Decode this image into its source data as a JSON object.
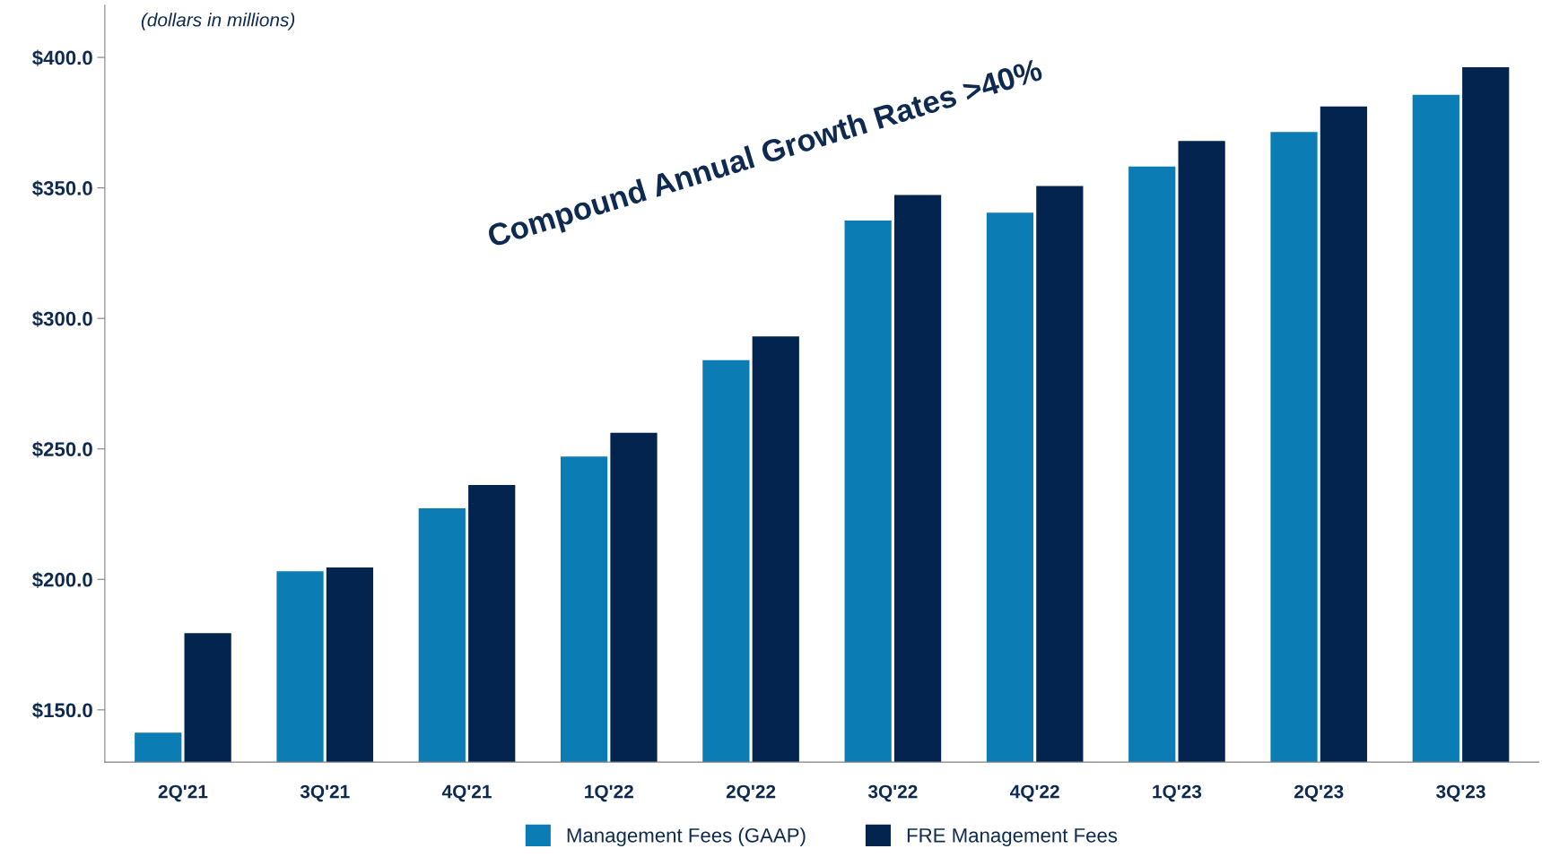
{
  "chart_data": {
    "type": "bar",
    "categories": [
      "2Q'21",
      "3Q'21",
      "4Q'21",
      "1Q'22",
      "2Q'22",
      "3Q'22",
      "4Q'22",
      "1Q'23",
      "2Q'23",
      "3Q'23"
    ],
    "series": [
      {
        "name": "Management Fees (GAAP)",
        "color": "#0b7db4",
        "values": [
          141.3,
          203.1,
          227.2,
          247.1,
          284.0,
          337.5,
          340.5,
          358.2,
          371.4,
          385.7
        ]
      },
      {
        "name": "FRE Management Fees",
        "color": "#03244e",
        "values": [
          179.4,
          204.6,
          236.2,
          256.2,
          293.1,
          347.3,
          350.7,
          368.0,
          381.2,
          396.2
        ]
      }
    ],
    "ylim": [
      130,
      420
    ],
    "yticks": [
      {
        "value": 150,
        "label": "$150.0"
      },
      {
        "value": 200,
        "label": "$200.0"
      },
      {
        "value": 250,
        "label": "$250.0"
      },
      {
        "value": 300,
        "label": "$300.0"
      },
      {
        "value": 350,
        "label": "$350.0"
      },
      {
        "value": 400,
        "label": "$400.0"
      }
    ],
    "annotations": [
      "(dollars in millions)",
      "Compound Annual Growth Rates >40%"
    ],
    "grid": false,
    "legend": "bottom"
  }
}
